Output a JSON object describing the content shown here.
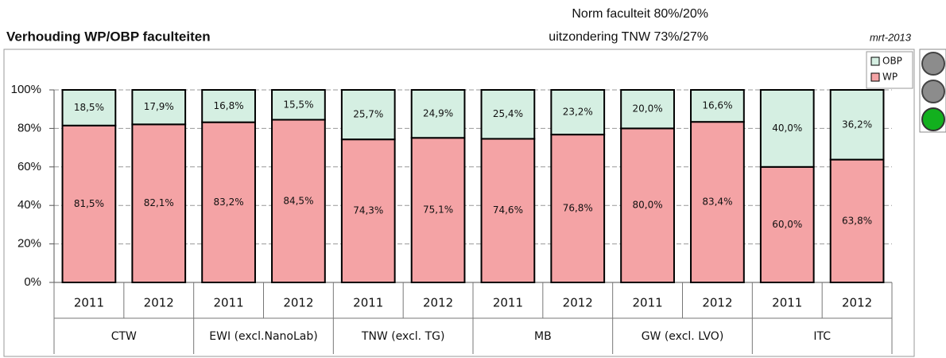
{
  "chart_data": {
    "type": "stacked_bar",
    "title": "Verhouding WP/OBP faculteiten",
    "annotations": [
      "Norm faculteit  80%/20%",
      "uitzondering TNW  73%/27%",
      "mrt-2013"
    ],
    "categories": [
      "2011",
      "2012",
      "2011",
      "2012",
      "2011",
      "2012",
      "2011",
      "2012",
      "2011",
      "2012",
      "2011",
      "2012"
    ],
    "groups": [
      "CTW",
      "EWI (excl.NanoLab)",
      "TNW (excl. TG)",
      "MB",
      "GW (excl. LVO)",
      "ITC"
    ],
    "series": [
      {
        "name": "WP",
        "color": "#f4a3a5",
        "values": [
          81.5,
          82.1,
          83.2,
          84.5,
          74.3,
          75.1,
          74.6,
          76.8,
          80.0,
          83.4,
          60.0,
          63.8
        ],
        "value_labels": [
          "81,5%",
          "82,1%",
          "83,2%",
          "84,5%",
          "74,3%",
          "75,1%",
          "74,6%",
          "76,8%",
          "80,0%",
          "83,4%",
          "60,0%",
          "63,8%"
        ]
      },
      {
        "name": "OBP",
        "color": "#d5efe2",
        "values": [
          18.5,
          17.9,
          16.8,
          15.5,
          25.7,
          24.9,
          25.4,
          23.2,
          20.0,
          16.6,
          40.0,
          36.2
        ],
        "value_labels": [
          "18,5%",
          "17,9%",
          "16,8%",
          "15,5%",
          "25,7%",
          "24,9%",
          "25,4%",
          "23,2%",
          "20,0%",
          "16,6%",
          "40,0%",
          "36,2%"
        ]
      }
    ],
    "ylim": [
      0,
      100
    ],
    "yticks": [
      {
        "value": 0,
        "label": "0%"
      },
      {
        "value": 20,
        "label": "20%"
      },
      {
        "value": 40,
        "label": "40%"
      },
      {
        "value": 60,
        "label": "60%"
      },
      {
        "value": 80,
        "label": "80%"
      },
      {
        "value": 100,
        "label": "100%"
      }
    ],
    "grid": true,
    "legend": "top-right"
  }
}
